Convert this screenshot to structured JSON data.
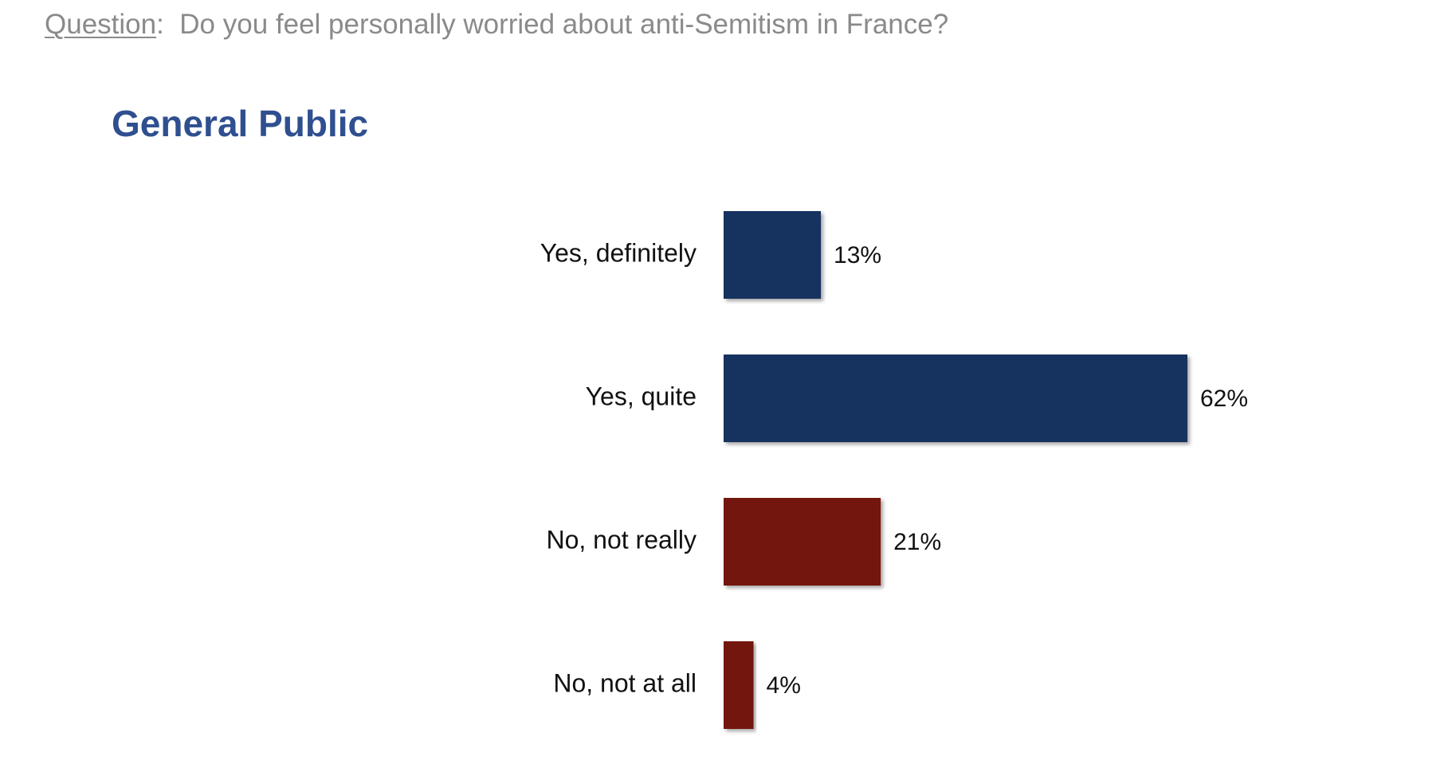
{
  "question": {
    "label": "Question",
    "separator": ":",
    "text": "Do you feel personally worried about anti-Semitism in France?"
  },
  "panel_title": "General Public",
  "colors": {
    "yes": "#13325f",
    "no": "#73180e",
    "question_text": "#8a8a8a",
    "title": "#2f4f8f"
  },
  "chart_data": {
    "type": "bar",
    "orientation": "horizontal",
    "title": "General Public",
    "xlabel": "",
    "ylabel": "",
    "xlim": [
      0,
      62
    ],
    "grid": false,
    "categories": [
      "Yes, definitely",
      "Yes, quite",
      "No, not really",
      "No, not at all"
    ],
    "values": [
      13,
      62,
      21,
      4
    ],
    "value_labels": [
      "13%",
      "62%",
      "21%",
      "4%"
    ],
    "bar_colors": [
      "#13325f",
      "#13325f",
      "#73180e",
      "#73180e"
    ]
  }
}
